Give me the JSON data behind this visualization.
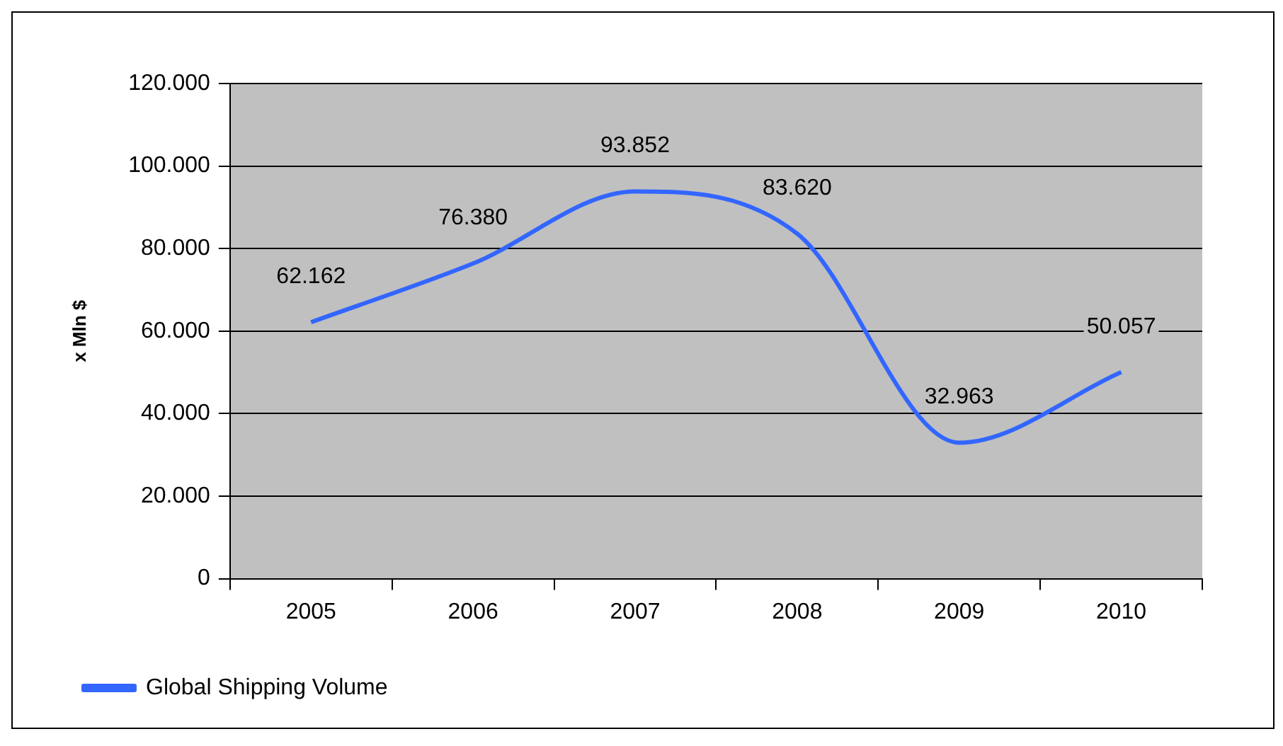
{
  "chart_data": {
    "type": "line",
    "ylabel": "x Mln $",
    "categories": [
      "2005",
      "2006",
      "2007",
      "2008",
      "2009",
      "2010"
    ],
    "series": [
      {
        "name": "Global Shipping Volume",
        "color": "#3366ff",
        "values": [
          62162,
          76380,
          93852,
          83620,
          32963,
          50057
        ],
        "value_labels": [
          "62.162",
          "76.380",
          "93.852",
          "83.620",
          "32.963",
          "50.057"
        ]
      }
    ],
    "ylim": [
      0,
      120000
    ],
    "yticks": [
      0,
      {
        "value": 20000,
        "label": "20.000"
      },
      {
        "value": 40000,
        "label": "40.000"
      },
      {
        "value": 60000,
        "label": "60.000"
      },
      {
        "value": 80000,
        "label": "80.000"
      },
      {
        "value": 100000,
        "label": "100.000"
      },
      {
        "value": 120000,
        "label": "120.000"
      }
    ],
    "grid": "y",
    "legend": "bottom",
    "marker": "none",
    "line_style": "solid"
  }
}
